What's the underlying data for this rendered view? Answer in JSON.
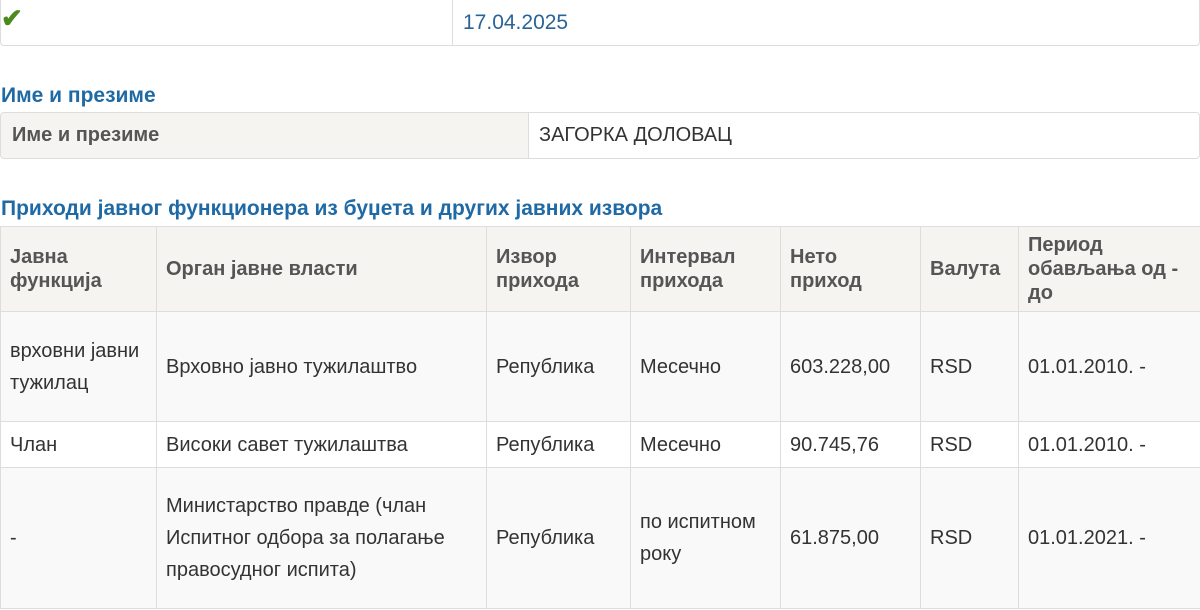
{
  "status": {
    "icon": "checkmark-icon",
    "date": "17.04.2025"
  },
  "name_section": {
    "title": "Име и презиме",
    "label": "Име и презиме",
    "value": "ЗАГОРКА ДОЛОВАЦ"
  },
  "income_section": {
    "title": "Приходи јавног функционера из буџета и других јавних извора",
    "columns": [
      "Јавна функција",
      "Орган јавне власти",
      "Извор прихода",
      "Интервал прихода",
      "Нето приход",
      "Валута",
      "Период обављања од - до"
    ],
    "rows": [
      [
        "врховни јавни тужилац",
        "Врховно јавно тужилаштво",
        "Република",
        "Месечно",
        "603.228,00",
        "RSD",
        "01.01.2010. -"
      ],
      [
        "Члан",
        "Високи савет тужилаштва",
        "Република",
        "Месечно",
        "90.745,76",
        "RSD",
        "01.01.2010. -"
      ],
      [
        "-",
        "Министарство правде (члан Испитног одбора за полагање правосудног испита)",
        "Република",
        "по испитном року",
        "61.875,00",
        "RSD",
        "01.01.2021. -"
      ]
    ]
  },
  "colors": {
    "heading": "#1f6aa5",
    "date": "#2a6496",
    "check": "#4a8a1f",
    "header_bg": "#f5f4f0"
  }
}
